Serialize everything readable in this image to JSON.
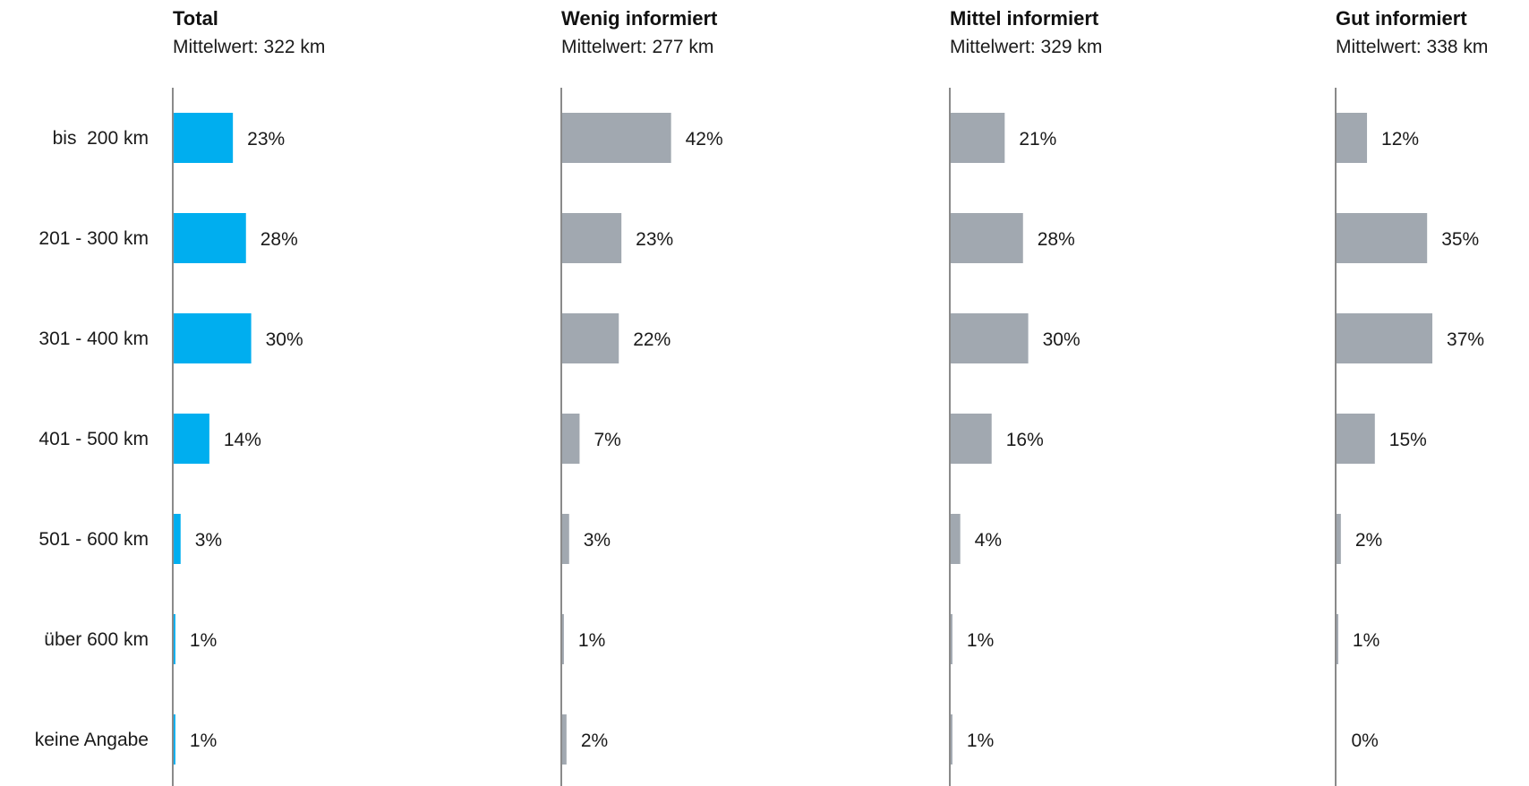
{
  "chart_data": {
    "type": "bar",
    "orientation": "horizontal",
    "categories": [
      "bis  200 km",
      "201 - 300 km",
      "301 - 400 km",
      "401 - 500 km",
      "501 - 600 km",
      "über 600 km",
      "keine Angabe"
    ],
    "panels": [
      {
        "name": "Total",
        "subtitle": "Mittelwert: 322 km",
        "color": "#00aeef",
        "values": [
          23,
          28,
          30,
          14,
          3,
          1,
          1
        ],
        "labels": [
          "23%",
          "28%",
          "30%",
          "14%",
          "3%",
          "1%",
          "1%"
        ]
      },
      {
        "name": "Wenig informiert",
        "subtitle": "Mittelwert: 277 km",
        "color": "#a1a8b0",
        "values": [
          42,
          23,
          22,
          7,
          3,
          1,
          2
        ],
        "labels": [
          "42%",
          "23%",
          "22%",
          "7%",
          "3%",
          "1%",
          "2%"
        ]
      },
      {
        "name": "Mittel informiert",
        "subtitle": "Mittelwert: 329 km",
        "color": "#a1a8b0",
        "values": [
          21,
          28,
          30,
          16,
          4,
          1,
          1
        ],
        "labels": [
          "21%",
          "28%",
          "30%",
          "16%",
          "4%",
          "1%",
          "1%"
        ]
      },
      {
        "name": "Gut informiert",
        "subtitle": "Mittelwert: 338 km",
        "color": "#a1a8b0",
        "values": [
          12,
          35,
          37,
          15,
          2,
          1,
          0
        ],
        "labels": [
          "12%",
          "35%",
          "37%",
          "15%",
          "2%",
          "1%",
          "0%"
        ]
      }
    ],
    "xlim": [
      0,
      100
    ],
    "grid": false,
    "legend": "none"
  }
}
